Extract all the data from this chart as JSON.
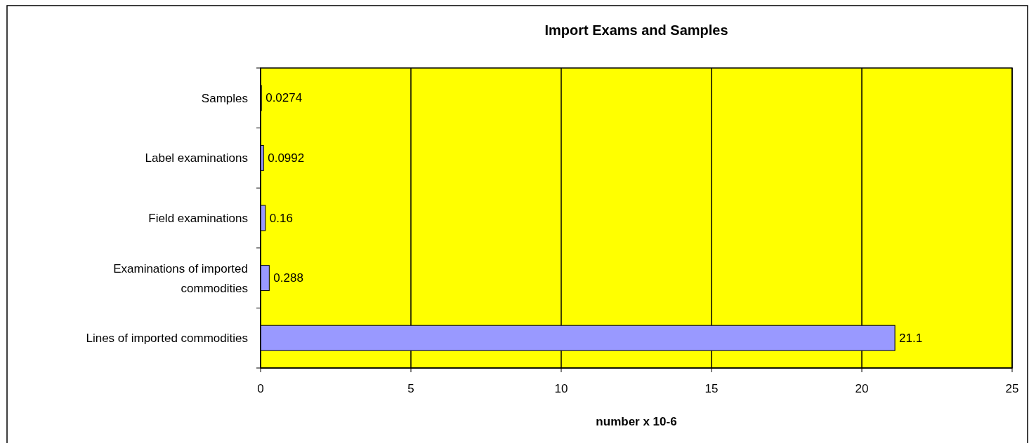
{
  "chart_data": {
    "type": "bar",
    "orientation": "horizontal",
    "title": "Import Exams and Samples",
    "xlabel": "number x 10-6",
    "categories": [
      "Samples",
      "Label examinations",
      "Field examinations",
      "Examinations of imported commodities",
      "Lines of imported commodities"
    ],
    "values": [
      0.0274,
      0.0992,
      0.16,
      0.288,
      21.1
    ],
    "color": "#9999ff",
    "xlim": [
      0,
      25
    ],
    "xticks": [
      0,
      5,
      10,
      15,
      20,
      25
    ],
    "grid": "x",
    "data_labels": true
  }
}
